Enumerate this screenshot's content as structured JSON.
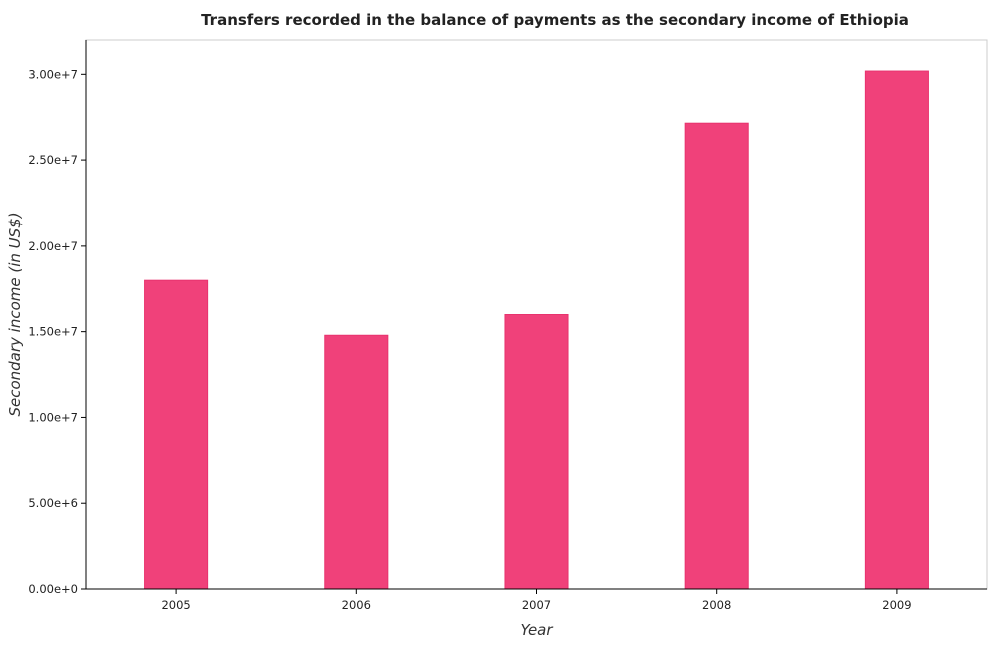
{
  "chart_data": {
    "type": "bar",
    "title": "Transfers recorded in the balance of payments as the secondary income of Ethiopia",
    "xlabel": "Year",
    "ylabel": "Secondary income (in US$)",
    "categories": [
      "2005",
      "2006",
      "2007",
      "2008",
      "2009"
    ],
    "values": [
      18000000,
      14790000,
      16000000,
      27150000,
      30190000
    ],
    "ylim": [
      0,
      32000000
    ],
    "yticks": [
      0,
      5000000,
      10000000,
      15000000,
      20000000,
      25000000,
      30000000
    ],
    "ytick_labels": [
      "0.00e+0",
      "5.00e+6",
      "1.00e+7",
      "1.50e+7",
      "2.00e+7",
      "2.50e+7",
      "3.00e+7"
    ],
    "grid": false,
    "legend": "none",
    "bar_color": "#f0417a",
    "bar_edge_color": "#e8336e"
  }
}
